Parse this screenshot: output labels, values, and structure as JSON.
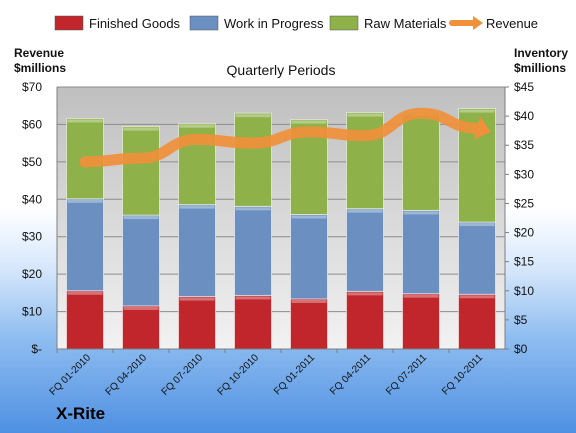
{
  "chart_data": {
    "type": "bar",
    "stacked": true,
    "title": "Quarterly Periods",
    "left_axis_label": [
      "Revenue",
      "$millions"
    ],
    "right_axis_label": [
      "Inventory",
      "$millions"
    ],
    "categories": [
      "FQ 01-2010",
      "FQ 04-2010",
      "FQ 07-2010",
      "FQ 10-2010",
      "FQ 01-2011",
      "FQ 04-2011",
      "FQ 07-2011",
      "FQ 10-2011"
    ],
    "left_ylim": [
      0,
      70
    ],
    "right_ylim": [
      0,
      45
    ],
    "left_ticks": [
      "$-",
      "$10",
      "$20",
      "$30",
      "$40",
      "$50",
      "$60",
      "$70"
    ],
    "right_ticks": [
      "$0",
      "$5",
      "$10",
      "$15",
      "$20",
      "$25",
      "$30",
      "$35",
      "$40",
      "$45"
    ],
    "series": [
      {
        "name": "Finished Goods",
        "axis": "right",
        "color": "#c0262b",
        "values": [
          10.0,
          7.4,
          9.0,
          9.2,
          8.6,
          9.9,
          9.5,
          9.4
        ]
      },
      {
        "name": "Work in Progress",
        "axis": "right",
        "color": "#6a8fc0",
        "values": [
          15.8,
          15.6,
          15.8,
          15.3,
          14.5,
          14.2,
          14.3,
          12.4
        ]
      },
      {
        "name": "Raw Materials",
        "axis": "right",
        "color": "#8eb14a",
        "values": [
          13.8,
          15.2,
          13.9,
          16.0,
          16.3,
          16.5,
          16.9,
          19.5
        ]
      },
      {
        "name": "Revenue",
        "axis": "left",
        "type": "line",
        "color": "#f0903a",
        "values": [
          50,
          51,
          56,
          55,
          58,
          57,
          63,
          59
        ]
      }
    ],
    "legend_position": "top",
    "grid": true
  },
  "branding": {
    "company": "X-Rite"
  }
}
